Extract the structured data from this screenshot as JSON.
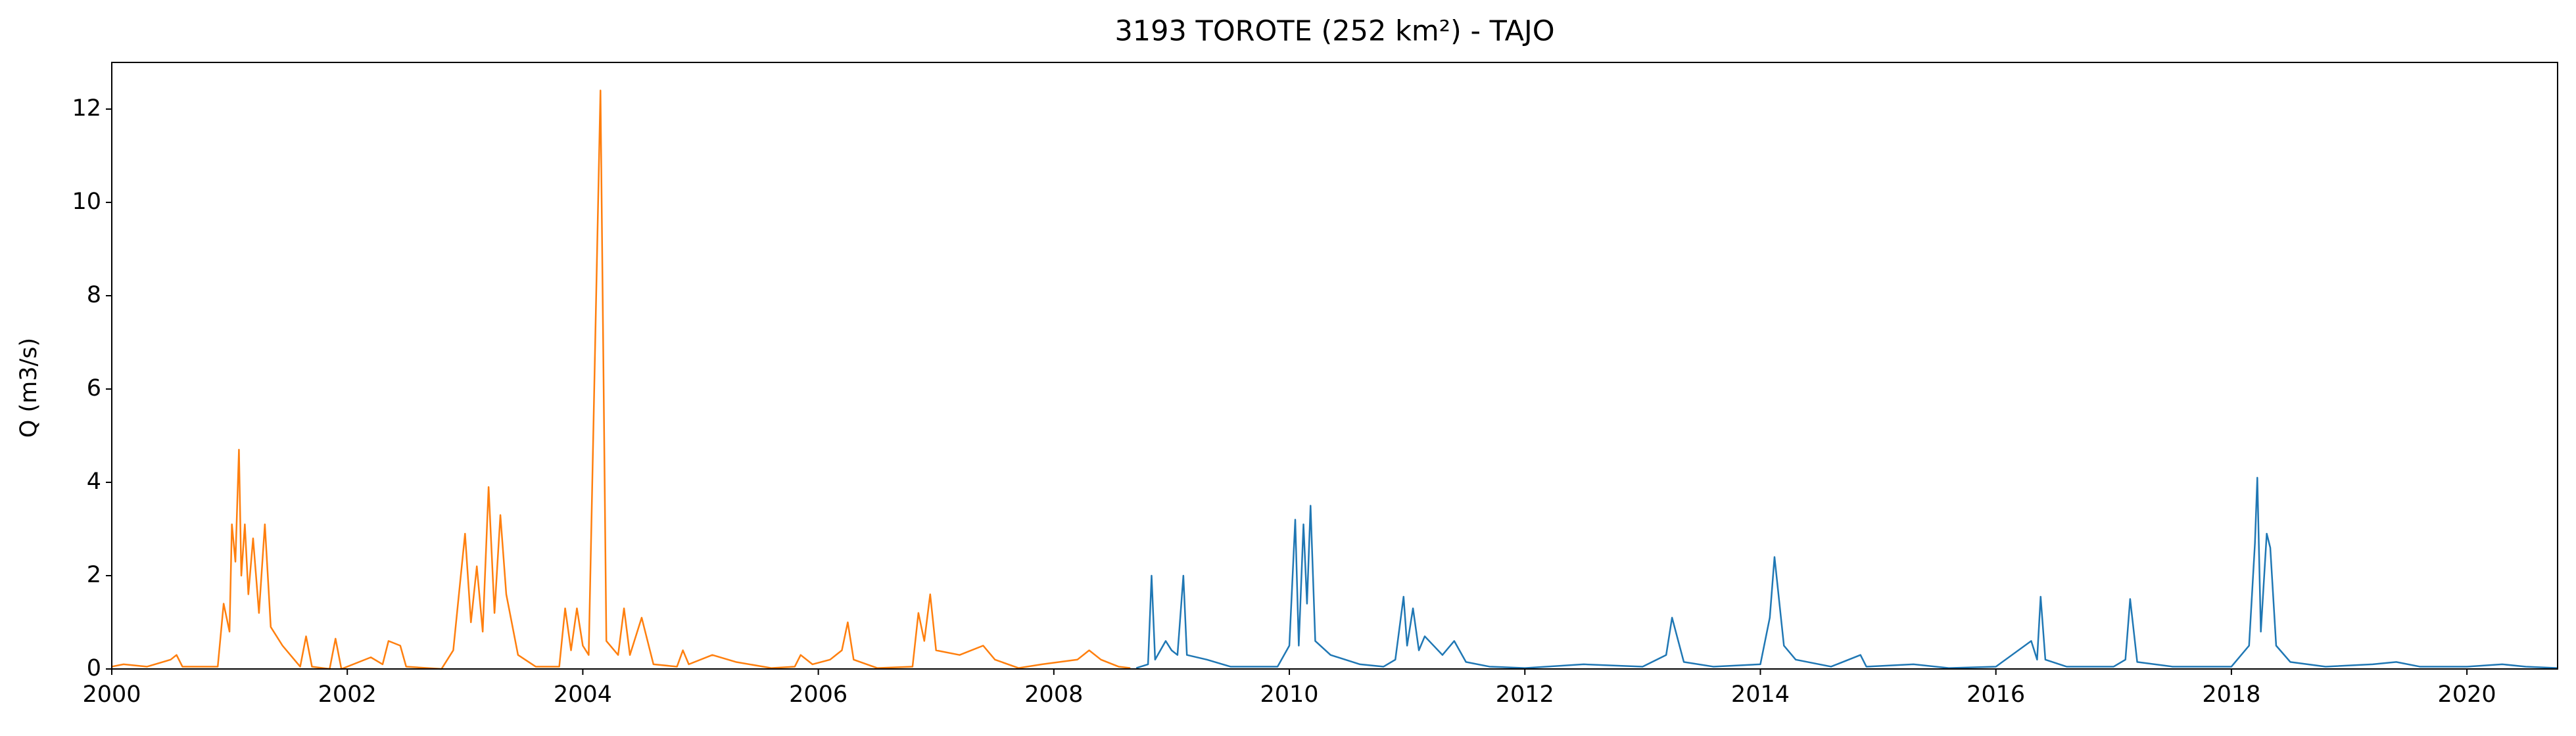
{
  "chart_data": {
    "type": "line",
    "title": "3193 TOROTE (252 km²) - TAJO",
    "y_label": "Q (m3/s)",
    "xlim": [
      2000,
      2020.77
    ],
    "xticks": [
      2000,
      2002,
      2004,
      2006,
      2008,
      2010,
      2012,
      2014,
      2016,
      2018,
      2020
    ],
    "ylim": [
      0,
      13
    ],
    "yticks": [
      0,
      2,
      4,
      6,
      8,
      10,
      12
    ],
    "grid": false,
    "series": [
      {
        "color": "#ff7f0e",
        "x": [
          2000.0,
          2000.1,
          2000.3,
          2000.5,
          2000.55,
          2000.6,
          2000.9,
          2000.95,
          2001.0,
          2001.02,
          2001.05,
          2001.08,
          2001.1,
          2001.13,
          2001.16,
          2001.2,
          2001.25,
          2001.3,
          2001.35,
          2001.45,
          2001.55,
          2001.6,
          2001.65,
          2001.7,
          2001.85,
          2001.9,
          2001.95,
          2002.2,
          2002.3,
          2002.35,
          2002.45,
          2002.5,
          2002.8,
          2002.9,
          2003.0,
          2003.05,
          2003.1,
          2003.15,
          2003.2,
          2003.25,
          2003.3,
          2003.35,
          2003.45,
          2003.6,
          2003.8,
          2003.85,
          2003.9,
          2003.95,
          2004.0,
          2004.05,
          2004.15,
          2004.2,
          2004.3,
          2004.35,
          2004.4,
          2004.5,
          2004.6,
          2004.8,
          2004.85,
          2004.9,
          2005.1,
          2005.3,
          2005.6,
          2005.8,
          2005.85,
          2005.95,
          2006.1,
          2006.2,
          2006.25,
          2006.3,
          2006.5,
          2006.8,
          2006.85,
          2006.9,
          2006.95,
          2007.0,
          2007.2,
          2007.4,
          2007.5,
          2007.7,
          2007.9,
          2008.2,
          2008.3,
          2008.4,
          2008.55,
          2008.65
        ],
        "values": [
          0.05,
          0.1,
          0.05,
          0.2,
          0.3,
          0.05,
          0.05,
          1.4,
          0.8,
          3.1,
          2.3,
          4.7,
          2.0,
          3.1,
          1.6,
          2.8,
          1.2,
          3.1,
          0.9,
          0.5,
          0.2,
          0.05,
          0.7,
          0.05,
          0.0,
          0.65,
          0.0,
          0.25,
          0.1,
          0.6,
          0.5,
          0.05,
          0.0,
          0.4,
          2.9,
          1.0,
          2.2,
          0.8,
          3.9,
          1.2,
          3.3,
          1.6,
          0.3,
          0.05,
          0.05,
          1.3,
          0.4,
          1.3,
          0.5,
          0.3,
          12.4,
          0.6,
          0.3,
          1.3,
          0.3,
          1.1,
          0.1,
          0.05,
          0.4,
          0.1,
          0.3,
          0.15,
          0.02,
          0.05,
          0.3,
          0.1,
          0.2,
          0.4,
          1.0,
          0.2,
          0.02,
          0.05,
          1.2,
          0.6,
          1.6,
          0.4,
          0.3,
          0.5,
          0.2,
          0.02,
          0.1,
          0.2,
          0.4,
          0.2,
          0.05,
          0.02
        ]
      },
      {
        "color": "#1f77b4",
        "x": [
          2008.7,
          2008.8,
          2008.83,
          2008.86,
          2008.95,
          2009.0,
          2009.05,
          2009.1,
          2009.13,
          2009.3,
          2009.5,
          2009.9,
          2010.0,
          2010.05,
          2010.08,
          2010.12,
          2010.15,
          2010.18,
          2010.22,
          2010.35,
          2010.6,
          2010.8,
          2010.9,
          2010.97,
          2011.0,
          2011.05,
          2011.1,
          2011.15,
          2011.3,
          2011.4,
          2011.5,
          2011.7,
          2012.0,
          2012.5,
          2013.0,
          2013.2,
          2013.25,
          2013.35,
          2013.6,
          2014.0,
          2014.08,
          2014.12,
          2014.2,
          2014.3,
          2014.6,
          2014.85,
          2014.9,
          2015.3,
          2015.6,
          2016.0,
          2016.3,
          2016.35,
          2016.38,
          2016.42,
          2016.6,
          2017.0,
          2017.1,
          2017.14,
          2017.2,
          2017.5,
          2018.0,
          2018.15,
          2018.2,
          2018.22,
          2018.25,
          2018.3,
          2018.33,
          2018.38,
          2018.5,
          2018.8,
          2019.2,
          2019.4,
          2019.6,
          2020.0,
          2020.3,
          2020.5,
          2020.77
        ],
        "values": [
          0.02,
          0.1,
          2.0,
          0.2,
          0.6,
          0.4,
          0.3,
          2.0,
          0.3,
          0.2,
          0.05,
          0.05,
          0.5,
          3.2,
          0.5,
          3.1,
          1.4,
          3.5,
          0.6,
          0.3,
          0.1,
          0.05,
          0.2,
          1.55,
          0.5,
          1.3,
          0.4,
          0.7,
          0.3,
          0.6,
          0.15,
          0.05,
          0.02,
          0.1,
          0.05,
          0.3,
          1.1,
          0.15,
          0.05,
          0.1,
          1.1,
          2.4,
          0.5,
          0.2,
          0.05,
          0.3,
          0.05,
          0.1,
          0.02,
          0.05,
          0.6,
          0.2,
          1.55,
          0.2,
          0.05,
          0.05,
          0.2,
          1.5,
          0.15,
          0.05,
          0.05,
          0.5,
          2.7,
          4.1,
          0.8,
          2.9,
          2.6,
          0.5,
          0.15,
          0.05,
          0.1,
          0.15,
          0.05,
          0.05,
          0.1,
          0.05,
          0.02
        ]
      }
    ]
  }
}
